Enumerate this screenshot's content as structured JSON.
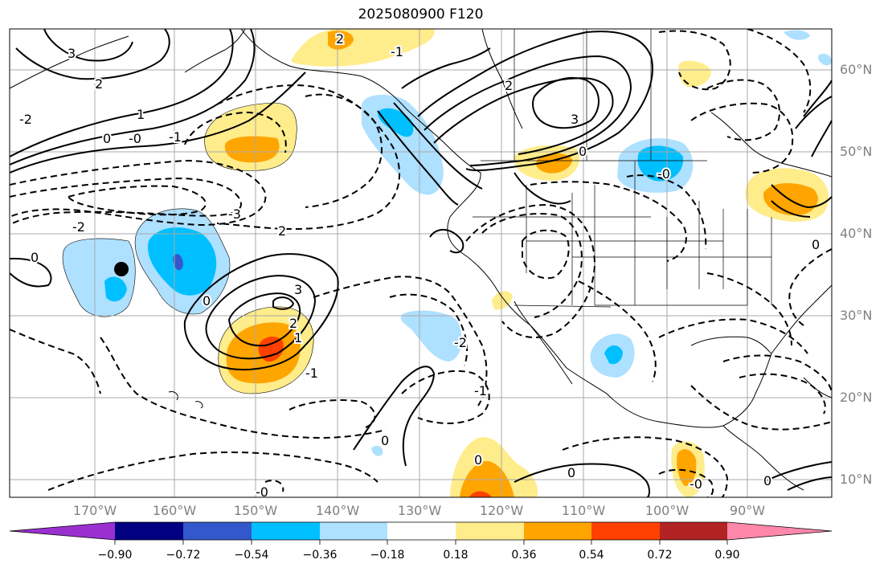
{
  "title": "2025080900 F120",
  "map": {
    "lon_labels": [
      "170°W",
      "160°W",
      "150°W",
      "140°W",
      "130°W",
      "120°W",
      "110°W",
      "100°W",
      "90°W"
    ],
    "lat_labels": [
      "60°N",
      "50°N",
      "40°N",
      "30°N",
      "20°N",
      "10°N"
    ],
    "contour_labels": [
      "3",
      "2",
      "1",
      "0",
      "-1",
      "-2",
      "-3",
      "0",
      "-0",
      "2",
      "-3",
      "-2",
      "3",
      "2",
      "1",
      "-1",
      "0",
      "-2",
      "-1",
      "-0"
    ],
    "marker": "storm-position-dot"
  },
  "colorbar": {
    "ticks": [
      "−0.90",
      "−0.72",
      "−0.54",
      "−0.36",
      "−0.18",
      "0.18",
      "0.36",
      "0.54",
      "0.72",
      "0.90"
    ],
    "colors": [
      "#9b30d0",
      "#000080",
      "#3358cc",
      "#00bfff",
      "#aee0ff",
      "#ffffff",
      "#ffec8b",
      "#ffa500",
      "#ff4000",
      "#b22222",
      "#ff88aa"
    ]
  }
}
